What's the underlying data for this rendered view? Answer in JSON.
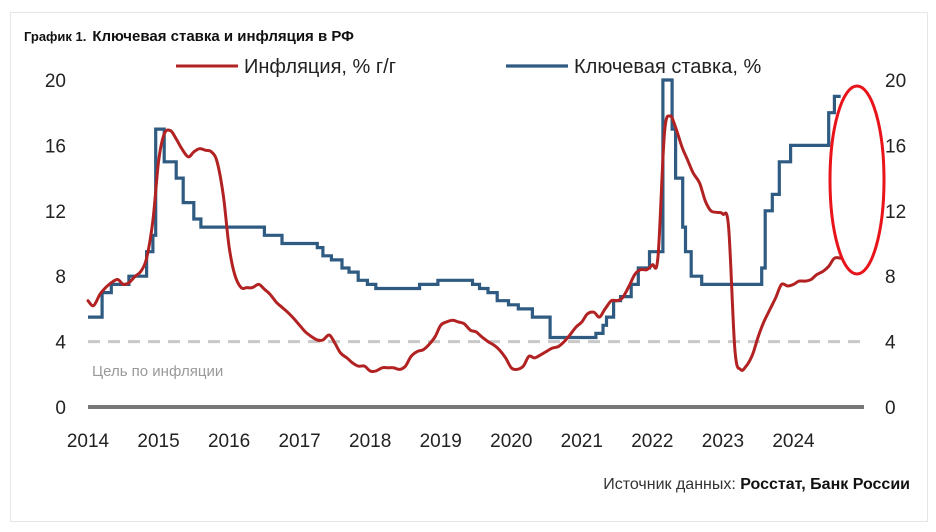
{
  "title": {
    "number": "График 1.",
    "text": "Ключевая ставка и инфляция в РФ"
  },
  "source": {
    "label": "Источник данных:",
    "value": "Росстат, Банк России"
  },
  "colors": {
    "inflation": "#b22222",
    "key_rate": "#2f5b82",
    "target": "#c8c8c8",
    "axis": "#777777",
    "highlight": "#e8141a",
    "text": "#333333"
  },
  "chart_data": {
    "type": "line",
    "title": "Ключевая ставка и инфляция в РФ",
    "xlabel": "",
    "ylabel": "",
    "xlim": [
      2014.0,
      2025.0
    ],
    "ylim": [
      0,
      20
    ],
    "x_ticks": [
      "2014",
      "2015",
      "2016",
      "2017",
      "2018",
      "2019",
      "2020",
      "2021",
      "2022",
      "2023",
      "2024"
    ],
    "y_ticks_left": [
      "0",
      "4",
      "8",
      "12",
      "16",
      "20"
    ],
    "y_ticks_right": [
      "0",
      "4",
      "8",
      "12",
      "16",
      "20"
    ],
    "legend": {
      "position": "top",
      "entries": [
        "Инфляция, % г/г",
        "Ключевая ставка, %"
      ]
    },
    "target": {
      "value": 4,
      "label": "Цель по инфляции"
    },
    "highlight": {
      "type": "ellipse",
      "around": "late 2024"
    },
    "series": [
      {
        "name": "Инфляция, % г/г",
        "color": "#b22222",
        "style": "line",
        "x": [
          2014.0,
          2014.08,
          2014.17,
          2014.25,
          2014.33,
          2014.42,
          2014.5,
          2014.58,
          2014.67,
          2014.75,
          2014.83,
          2014.92,
          2015.0,
          2015.08,
          2015.17,
          2015.25,
          2015.33,
          2015.42,
          2015.5,
          2015.58,
          2015.67,
          2015.75,
          2015.83,
          2015.92,
          2016.0,
          2016.08,
          2016.17,
          2016.25,
          2016.33,
          2016.42,
          2016.5,
          2016.58,
          2016.67,
          2016.75,
          2016.83,
          2016.92,
          2017.0,
          2017.08,
          2017.17,
          2017.25,
          2017.33,
          2017.42,
          2017.5,
          2017.58,
          2017.67,
          2017.75,
          2017.83,
          2017.92,
          2018.0,
          2018.08,
          2018.17,
          2018.25,
          2018.33,
          2018.42,
          2018.5,
          2018.58,
          2018.67,
          2018.75,
          2018.83,
          2018.92,
          2019.0,
          2019.08,
          2019.17,
          2019.25,
          2019.33,
          2019.42,
          2019.5,
          2019.58,
          2019.67,
          2019.75,
          2019.83,
          2019.92,
          2020.0,
          2020.08,
          2020.17,
          2020.25,
          2020.33,
          2020.42,
          2020.5,
          2020.58,
          2020.67,
          2020.75,
          2020.83,
          2020.92,
          2021.0,
          2021.08,
          2021.17,
          2021.25,
          2021.33,
          2021.42,
          2021.5,
          2021.58,
          2021.67,
          2021.75,
          2021.83,
          2021.92,
          2022.0,
          2022.08,
          2022.17,
          2022.25,
          2022.33,
          2022.42,
          2022.5,
          2022.58,
          2022.67,
          2022.75,
          2022.83,
          2022.92,
          2023.0,
          2023.08,
          2023.17,
          2023.25,
          2023.33,
          2023.42,
          2023.5,
          2023.58,
          2023.67,
          2023.75,
          2023.83,
          2023.92,
          2024.0,
          2024.08,
          2024.17,
          2024.25,
          2024.33,
          2024.42,
          2024.5,
          2024.58,
          2024.67
        ],
        "values": [
          6.5,
          6.2,
          6.9,
          7.3,
          7.6,
          7.8,
          7.5,
          7.6,
          8.0,
          8.3,
          9.1,
          11.4,
          15.0,
          16.7,
          16.9,
          16.4,
          15.8,
          15.3,
          15.6,
          15.8,
          15.7,
          15.6,
          15.0,
          12.9,
          9.8,
          8.1,
          7.3,
          7.3,
          7.3,
          7.5,
          7.2,
          6.9,
          6.4,
          6.1,
          5.8,
          5.4,
          5.0,
          4.6,
          4.3,
          4.1,
          4.1,
          4.4,
          3.9,
          3.3,
          3.0,
          2.7,
          2.5,
          2.5,
          2.2,
          2.2,
          2.4,
          2.4,
          2.4,
          2.3,
          2.5,
          3.1,
          3.4,
          3.5,
          3.8,
          4.3,
          5.0,
          5.2,
          5.3,
          5.2,
          5.1,
          4.7,
          4.6,
          4.3,
          4.0,
          3.8,
          3.5,
          3.0,
          2.4,
          2.3,
          2.5,
          3.1,
          3.0,
          3.2,
          3.4,
          3.6,
          3.7,
          4.0,
          4.4,
          4.9,
          5.2,
          5.7,
          5.8,
          5.5,
          6.0,
          6.5,
          6.5,
          6.7,
          7.4,
          8.1,
          8.4,
          8.4,
          8.7,
          9.2,
          16.7,
          17.8,
          17.1,
          15.9,
          15.1,
          14.3,
          13.7,
          12.6,
          12.0,
          11.9,
          11.8,
          11.0,
          3.5,
          2.3,
          2.5,
          3.2,
          4.3,
          5.2,
          6.0,
          6.7,
          7.5,
          7.4,
          7.5,
          7.7,
          7.7,
          7.8,
          8.1,
          8.3,
          8.6,
          9.1,
          9.1
        ]
      },
      {
        "name": "Ключевая ставка, %",
        "color": "#2f5b82",
        "style": "step",
        "x": [
          2014.0,
          2014.15,
          2014.2,
          2014.33,
          2014.58,
          2014.83,
          2014.92,
          2014.96,
          2015.08,
          2015.25,
          2015.35,
          2015.5,
          2015.6,
          2016.5,
          2016.75,
          2017.25,
          2017.33,
          2017.45,
          2017.6,
          2017.7,
          2017.83,
          2017.96,
          2018.08,
          2018.2,
          2018.7,
          2018.96,
          2019.45,
          2019.55,
          2019.67,
          2019.8,
          2019.96,
          2020.1,
          2020.3,
          2020.55,
          2021.2,
          2021.3,
          2021.35,
          2021.45,
          2021.55,
          2021.7,
          2021.8,
          2021.96,
          2022.15,
          2022.28,
          2022.33,
          2022.43,
          2022.47,
          2022.55,
          2022.7,
          2023.55,
          2023.6,
          2023.7,
          2023.8,
          2023.96,
          2024.5,
          2024.58
        ],
        "values": [
          5.5,
          5.5,
          7.0,
          7.5,
          8.0,
          9.5,
          10.5,
          17.0,
          15.0,
          14.0,
          12.5,
          11.5,
          11.0,
          10.5,
          10.0,
          9.75,
          9.25,
          9.0,
          8.5,
          8.25,
          7.75,
          7.5,
          7.25,
          7.25,
          7.5,
          7.75,
          7.5,
          7.25,
          7.0,
          6.5,
          6.25,
          6.0,
          5.5,
          4.25,
          4.5,
          5.0,
          5.5,
          6.5,
          6.75,
          7.5,
          8.5,
          9.5,
          20.0,
          17.0,
          14.0,
          11.0,
          9.5,
          8.0,
          7.5,
          8.5,
          12.0,
          13.0,
          15.0,
          16.0,
          18.0,
          19.0
        ]
      },
      {
        "name": "Цель по инфляции",
        "color": "#c8c8c8",
        "style": "dashed",
        "x": [
          2014.0,
          2025.0
        ],
        "values": [
          4,
          4
        ]
      }
    ]
  }
}
